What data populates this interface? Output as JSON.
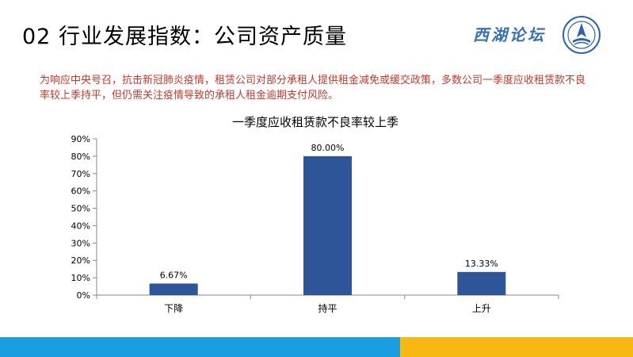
{
  "slide": {
    "title": "02 行业发展指数：公司资产质量",
    "logo_text": "西湖论坛",
    "summary": "为响应中央号召，抗击新冠肺炎疫情，租赁公司对部分承租人提供租金减免或缓交政策，多数公司一季度应收租赁款不良率较上季持平，但仍需关注疫情导致的承租人租金逾期支付风险。"
  },
  "colors": {
    "bar": "#2e5597",
    "summary_text": "#c0392b",
    "footer_blue": "#1b9ee1",
    "footer_yellow": "#f8b711"
  },
  "chart_data": {
    "type": "bar",
    "title": "一季度应收租赁款不良率较上季",
    "categories": [
      "下降",
      "持平",
      "上升"
    ],
    "values": [
      6.67,
      80.0,
      13.33
    ],
    "data_labels": [
      "6.67%",
      "80.00%",
      "13.33%"
    ],
    "ylim": [
      0,
      90
    ],
    "yticks": [
      "0%",
      "10%",
      "20%",
      "30%",
      "40%",
      "50%",
      "60%",
      "70%",
      "80%",
      "90%"
    ],
    "xlabel": "",
    "ylabel": "",
    "grid": false,
    "legend": "none"
  }
}
